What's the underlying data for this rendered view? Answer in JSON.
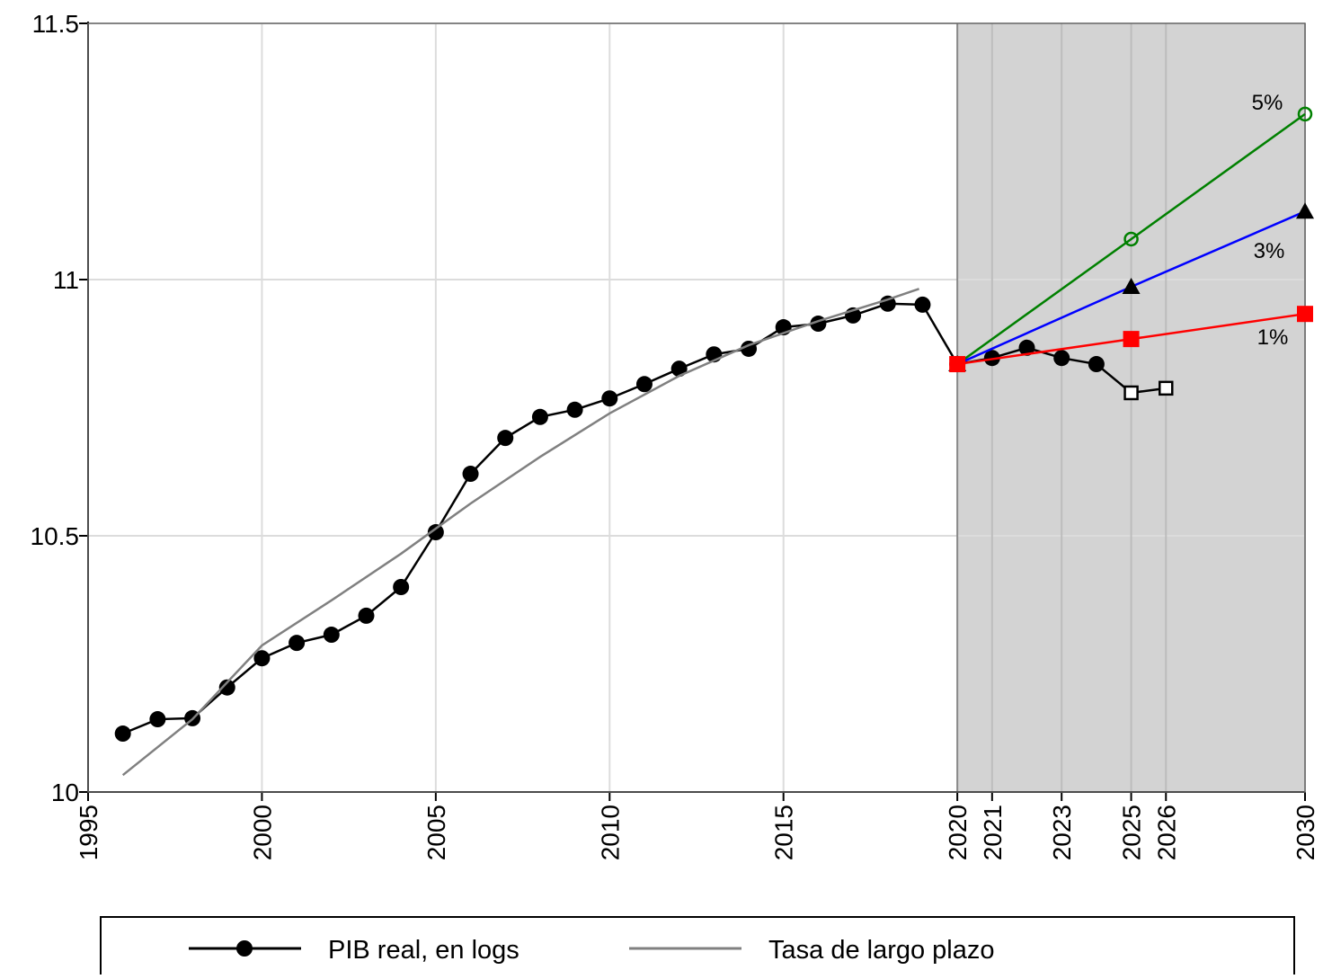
{
  "chart_data": {
    "type": "line",
    "xlim": [
      1995,
      2030
    ],
    "ylim": [
      10,
      11.5
    ],
    "xticks": [
      1995,
      2000,
      2005,
      2010,
      2015,
      2020,
      2021,
      2023,
      2025,
      2026,
      2030
    ],
    "yticks": [
      10,
      10.5,
      11,
      11.5
    ],
    "grid": true,
    "shade": [
      2020,
      2030
    ],
    "shade_color": "#d3d3d3",
    "legend": "bottom",
    "series": [
      {
        "name": "PIB real, en logs",
        "color": "#000000",
        "marker": "dot",
        "in_legend": true,
        "x": [
          1996,
          1997,
          1998,
          1999,
          2000,
          2001,
          2002,
          2003,
          2004,
          2005,
          2006,
          2007,
          2008,
          2009,
          2010,
          2011,
          2012,
          2013,
          2014,
          2015,
          2016,
          2017,
          2018,
          2019,
          2020,
          2021,
          2022,
          2023,
          2024,
          2025,
          2026
        ],
        "values": [
          10.114,
          10.142,
          10.144,
          10.204,
          10.261,
          10.291,
          10.307,
          10.344,
          10.4,
          10.507,
          10.621,
          10.691,
          10.732,
          10.746,
          10.768,
          10.796,
          10.826,
          10.854,
          10.865,
          10.907,
          10.914,
          10.93,
          10.953,
          10.951,
          10.835,
          10.847,
          10.867,
          10.847,
          10.835,
          10.779,
          10.788
        ],
        "markers": [
          "dot",
          "dot",
          "dot",
          "dot",
          "dot",
          "dot",
          "dot",
          "dot",
          "dot",
          "dot",
          "dot",
          "dot",
          "dot",
          "dot",
          "dot",
          "dot",
          "dot",
          "dot",
          "dot",
          "dot",
          "dot",
          "dot",
          "dot",
          "dot",
          "dot",
          "dot",
          "dot",
          "dot",
          "dot",
          "square-open",
          "square-open"
        ]
      },
      {
        "name": "Tasa de largo plazo",
        "color": "#808080",
        "marker": "none",
        "in_legend": true,
        "x": [
          1996,
          1998,
          2000,
          2002,
          2004,
          2006,
          2008,
          2010,
          2012,
          2014,
          2016,
          2018,
          2018.9
        ],
        "values": [
          10.033,
          10.142,
          10.286,
          10.374,
          10.465,
          10.563,
          10.654,
          10.739,
          10.812,
          10.872,
          10.919,
          10.961,
          10.982
        ]
      },
      {
        "name": "5%",
        "color": "#008000",
        "marker": "circle-open",
        "in_legend": false,
        "x": [
          2020,
          2025,
          2030
        ],
        "values": [
          10.835,
          11.079,
          11.323
        ]
      },
      {
        "name": "3%",
        "color": "#0000ff",
        "marker": "triangle",
        "in_legend": false,
        "x": [
          2020,
          2025,
          2030
        ],
        "values": [
          10.835,
          10.986,
          11.133
        ]
      },
      {
        "name": "1%",
        "color": "#ff0000",
        "marker": "square",
        "in_legend": false,
        "x": [
          2020,
          2025,
          2030
        ],
        "values": [
          10.835,
          10.884,
          10.933
        ]
      }
    ]
  }
}
